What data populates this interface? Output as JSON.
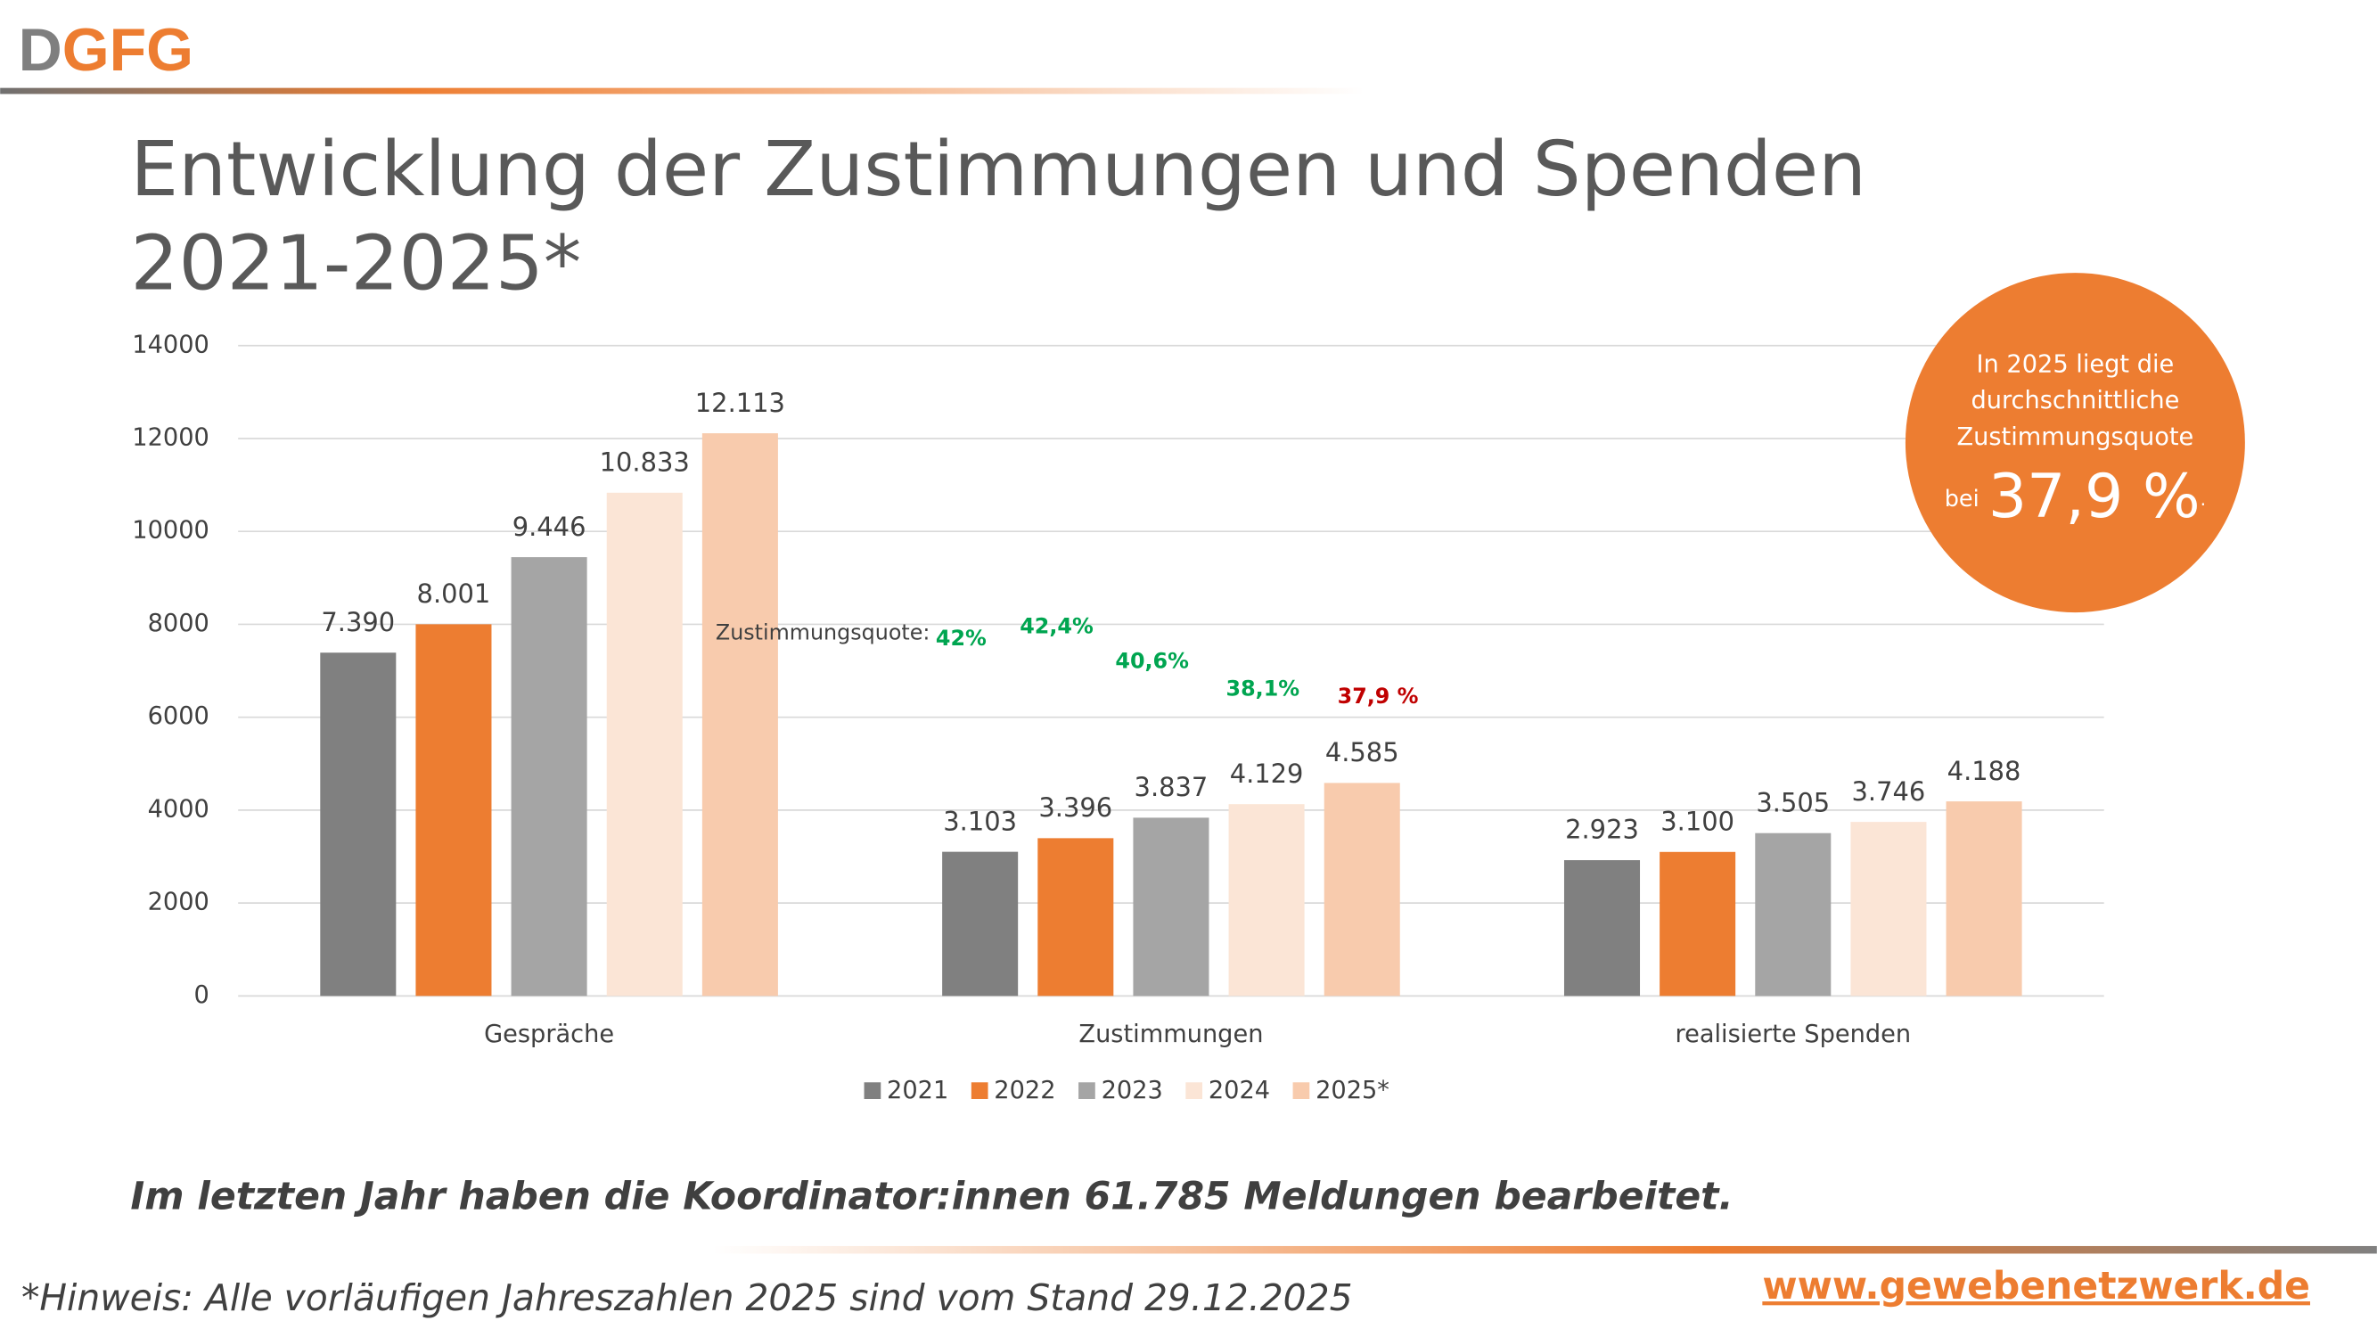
{
  "header": {
    "logo_parts": [
      "D",
      "GFG"
    ],
    "title_lines": [
      "Entwicklung der Zustimmungen und Spenden",
      "2021-2025*"
    ]
  },
  "chart_data": {
    "type": "bar",
    "categories": [
      "Gespräche",
      "Zustimmungen",
      "realisierte Spenden"
    ],
    "series": [
      {
        "name": "2021",
        "color": "#808080",
        "values": [
          7390,
          3103,
          2923
        ],
        "value_labels": [
          "7.390",
          "3.103",
          "2.923"
        ]
      },
      {
        "name": "2022",
        "color": "#ED7D31",
        "values": [
          8001,
          3396,
          3100
        ],
        "value_labels": [
          "8.001",
          "3.396",
          "3.100"
        ]
      },
      {
        "name": "2023",
        "color": "#A5A5A5",
        "values": [
          9446,
          3837,
          3505
        ],
        "value_labels": [
          "9.446",
          "3.837",
          "3.505"
        ]
      },
      {
        "name": "2024",
        "color": "#FBE5D6",
        "values": [
          10833,
          4129,
          3746
        ],
        "value_labels": [
          "10.833",
          "4.129",
          "3.746"
        ]
      },
      {
        "name": "2025*",
        "color": "#F8CBAD",
        "values": [
          12113,
          4585,
          4188
        ],
        "value_labels": [
          "12.113",
          "4.585",
          "4.188"
        ]
      }
    ],
    "ylim": [
      0,
      14000
    ],
    "yticks": [
      0,
      2000,
      4000,
      6000,
      8000,
      10000,
      12000,
      14000
    ],
    "grid": true,
    "legend": "bottom",
    "annotations": {
      "label": "Zustimmungsquote:",
      "quotes": [
        {
          "text": "42%",
          "color": "#00A550"
        },
        {
          "text": "42,4%",
          "color": "#00A550"
        },
        {
          "text": "40,6%",
          "color": "#00A550"
        },
        {
          "text": "38,1%",
          "color": "#00A550"
        },
        {
          "text": "37,9 %",
          "color": "#C00000"
        }
      ]
    }
  },
  "callout": {
    "lines": [
      "In 2025 liegt die",
      "durchschnittliche",
      "Zustimmungsquote"
    ],
    "prefix": "bei",
    "highlight": "37,9 %",
    "suffix": "."
  },
  "statement": "Im letzten Jahr haben die Koordinator:innen 61.785 Meldungen bearbeitet.",
  "footnote": "*Hinweis: Alle vorläufigen Jahreszahlen 2025 sind vom Stand 29.12.2025",
  "url": "www.gewebenetzwerk.de"
}
